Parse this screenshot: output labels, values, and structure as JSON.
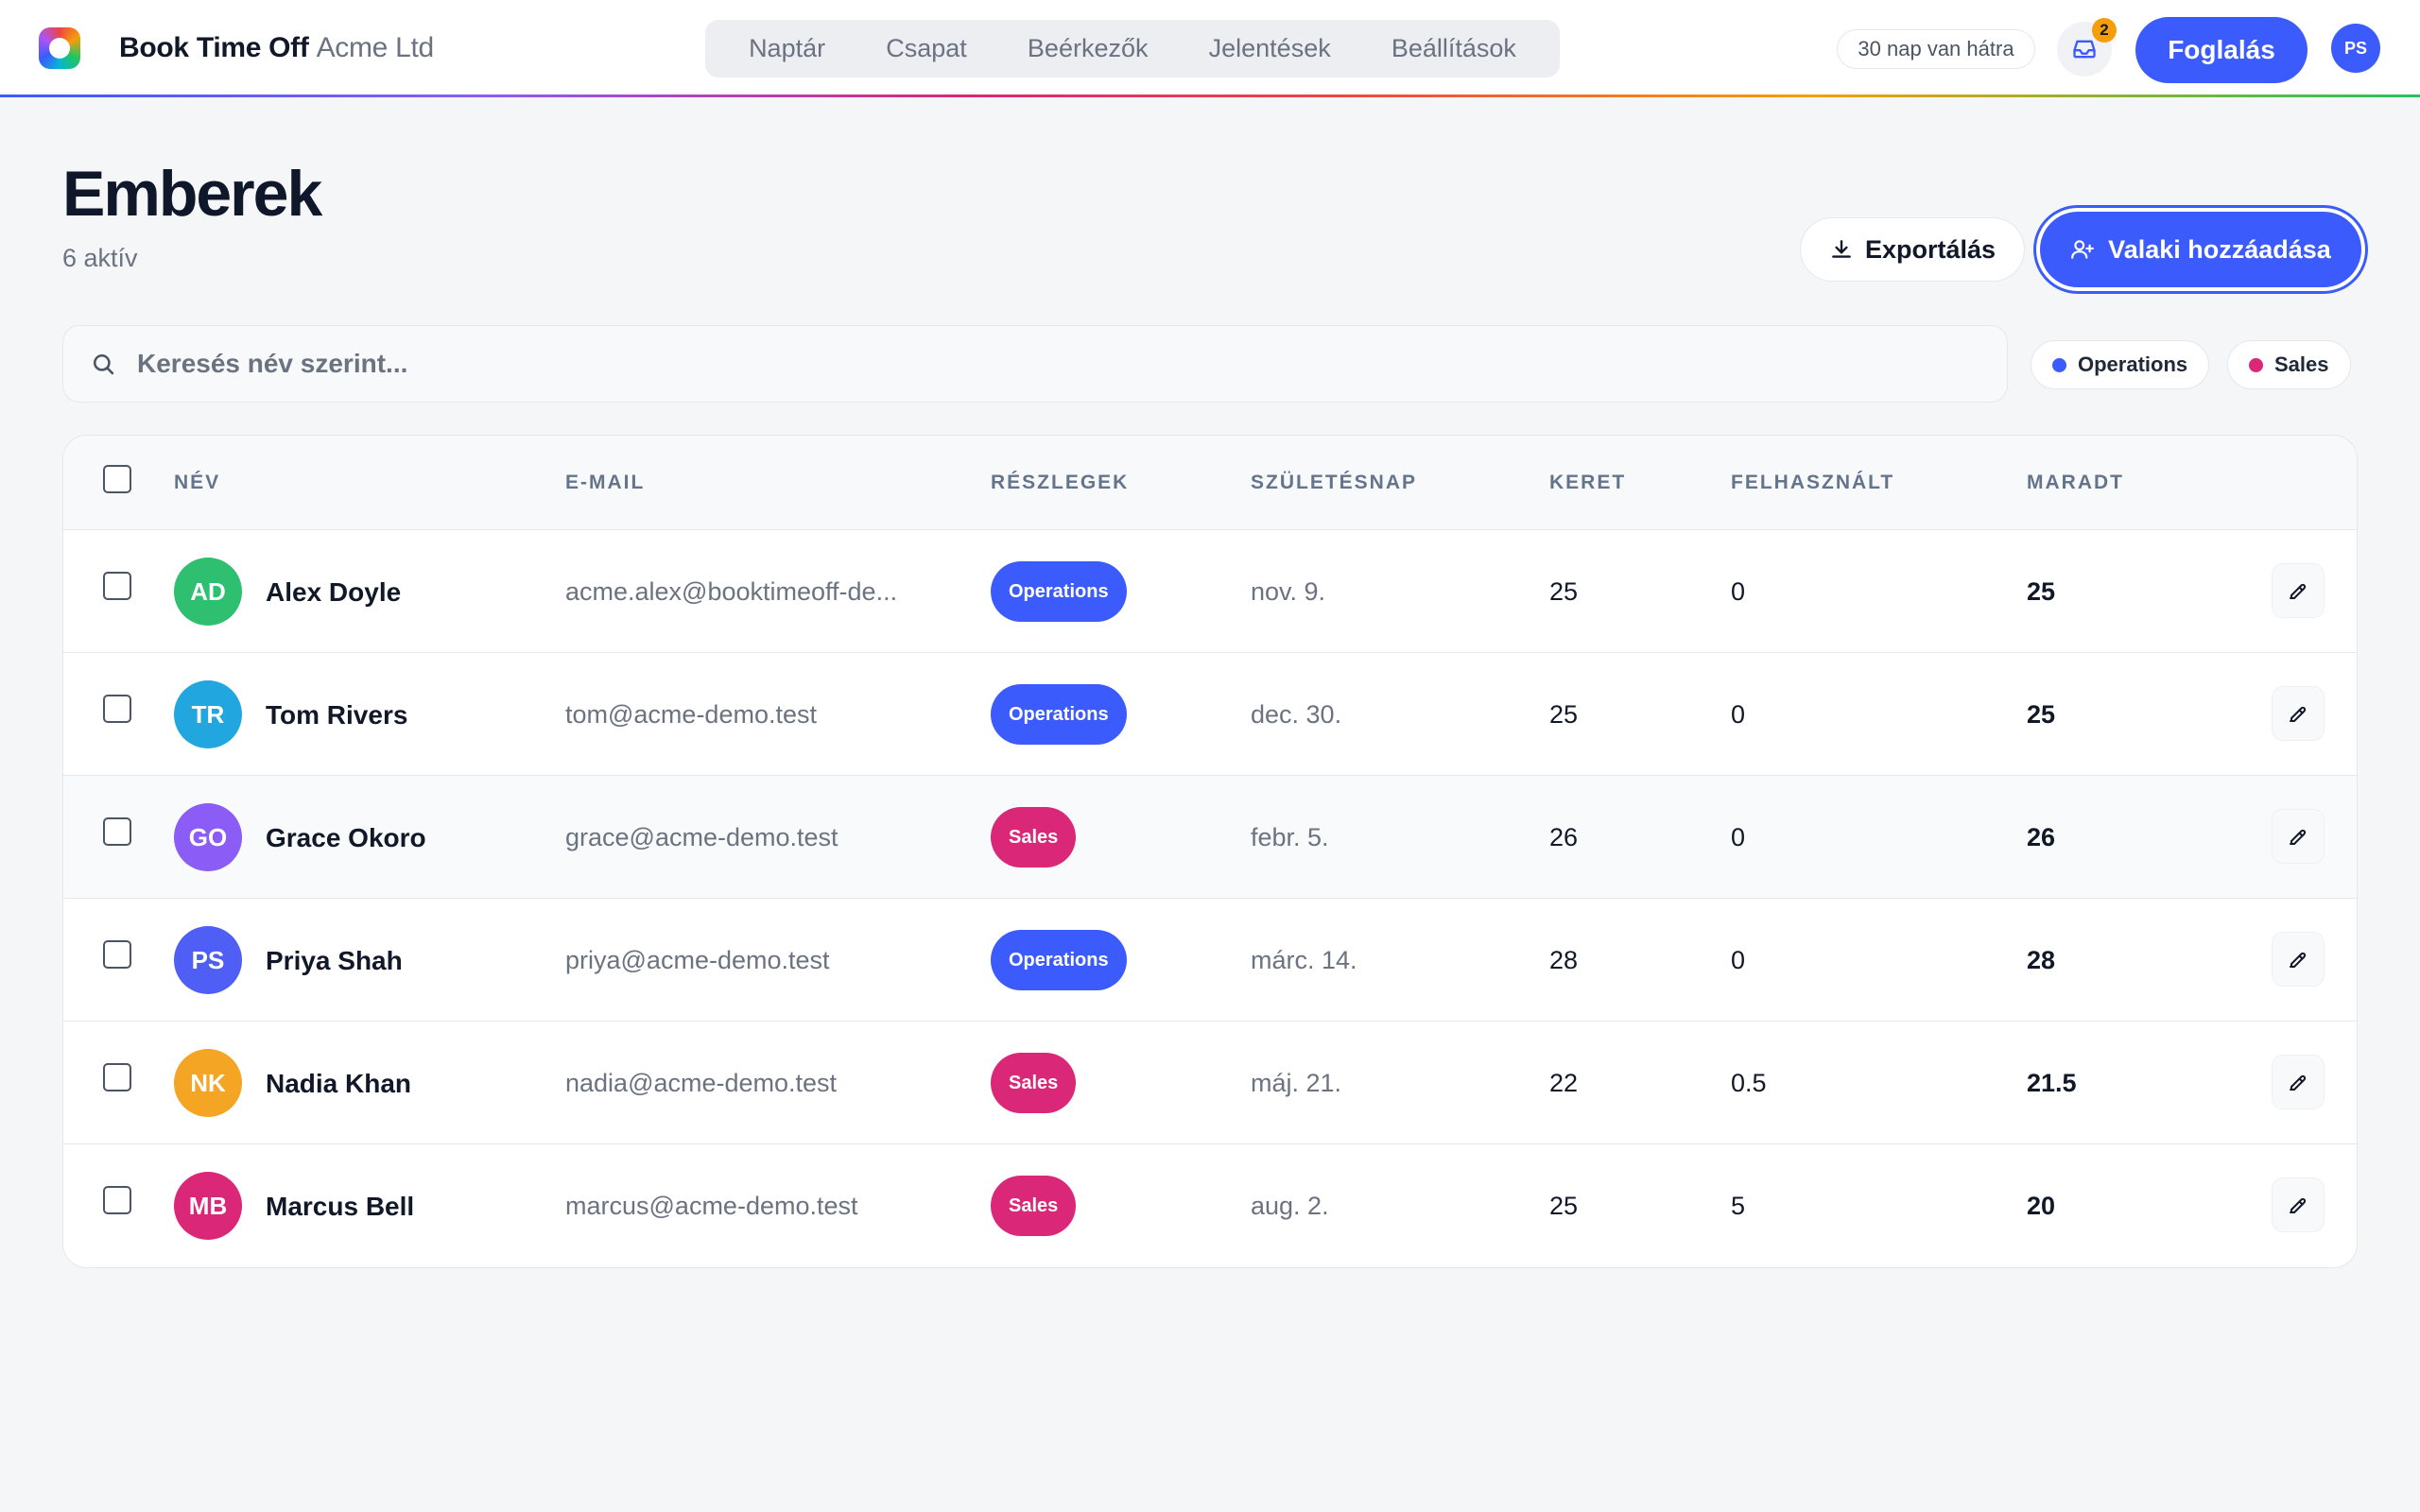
{
  "app": {
    "name": "Book Time Off",
    "org": "Acme Ltd",
    "trial_text": "30 nap van hátra",
    "inbox_count": "2",
    "book_label": "Foglalás",
    "user_initials": "PS"
  },
  "nav": [
    "Naptár",
    "Csapat",
    "Beérkezők",
    "Jelentések",
    "Beállítások"
  ],
  "page": {
    "title": "Emberek",
    "subtitle": "6 aktív",
    "export_label": "Exportálás",
    "add_label": "Valaki hozzáadása"
  },
  "search": {
    "placeholder": "Keresés név szerint..."
  },
  "filters": [
    {
      "label": "Operations",
      "color": "#3b5bfd"
    },
    {
      "label": "Sales",
      "color": "#db2777"
    }
  ],
  "table": {
    "headers": {
      "name": "NÉV",
      "email": "E-MAIL",
      "dept": "RÉSZLEGEK",
      "birthday": "SZÜLETÉSNAP",
      "allowance": "KERET",
      "used": "FELHASZNÁLT",
      "remaining": "MARADT"
    },
    "rows": [
      {
        "initials": "AD",
        "name": "Alex Doyle",
        "email": "acme.alex@booktimeoff-de...",
        "dept": "Operations",
        "birthday": "nov. 9.",
        "allowance": "25",
        "used": "0",
        "remaining": "25",
        "avatar_color": "#2fbf71"
      },
      {
        "initials": "TR",
        "name": "Tom Rivers",
        "email": "tom@acme-demo.test",
        "dept": "Operations",
        "birthday": "dec. 30.",
        "allowance": "25",
        "used": "0",
        "remaining": "25",
        "avatar_color": "#22a6e0"
      },
      {
        "initials": "GO",
        "name": "Grace Okoro",
        "email": "grace@acme-demo.test",
        "dept": "Sales",
        "birthday": "febr. 5.",
        "allowance": "26",
        "used": "0",
        "remaining": "26",
        "avatar_color": "#8b5cf6"
      },
      {
        "initials": "PS",
        "name": "Priya Shah",
        "email": "priya@acme-demo.test",
        "dept": "Operations",
        "birthday": "márc. 14.",
        "allowance": "28",
        "used": "0",
        "remaining": "28",
        "avatar_color": "#4f5ff5"
      },
      {
        "initials": "NK",
        "name": "Nadia Khan",
        "email": "nadia@acme-demo.test",
        "dept": "Sales",
        "birthday": "máj. 21.",
        "allowance": "22",
        "used": "0.5",
        "remaining": "21.5",
        "avatar_color": "#f5a524"
      },
      {
        "initials": "MB",
        "name": "Marcus Bell",
        "email": "marcus@acme-demo.test",
        "dept": "Sales",
        "birthday": "aug. 2.",
        "allowance": "25",
        "used": "5",
        "remaining": "20",
        "avatar_color": "#db2777"
      }
    ]
  },
  "colors": {
    "accent": "#3b5bfd",
    "operations": "#3b5bfd",
    "sales": "#db2777"
  }
}
